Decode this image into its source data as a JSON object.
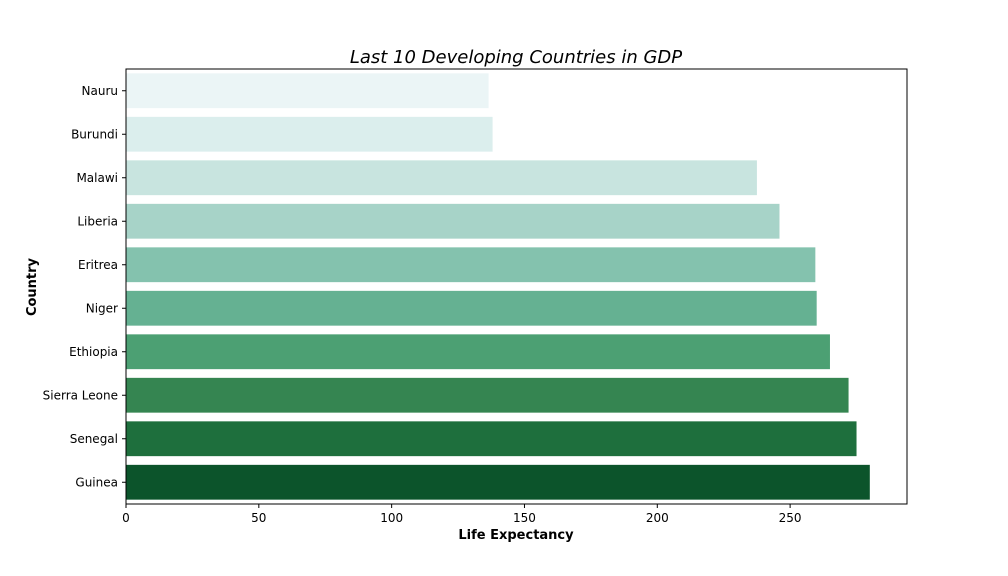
{
  "chart_data": {
    "type": "bar",
    "orientation": "horizontal",
    "title": "Last 10 Developing Countries in GDP",
    "xlabel": "Life Expectancy",
    "ylabel": "Country",
    "categories": [
      "Nauru",
      "Burundi",
      "Malawi",
      "Liberia",
      "Eritrea",
      "Niger",
      "Ethiopia",
      "Sierra Leone",
      "Senegal",
      "Guinea"
    ],
    "values": [
      136.5,
      138,
      237.5,
      246,
      259.5,
      260,
      265,
      272,
      275,
      280
    ],
    "xlim": [
      0,
      294
    ],
    "xticks": [
      0,
      50,
      100,
      150,
      200,
      250
    ],
    "grid": false,
    "colors": [
      "#ebf5f6",
      "#dbeeed",
      "#c8e4df",
      "#a7d3c8",
      "#84c2ae",
      "#65b192",
      "#4ca073",
      "#358551",
      "#1e6f3d",
      "#0c542b"
    ]
  }
}
